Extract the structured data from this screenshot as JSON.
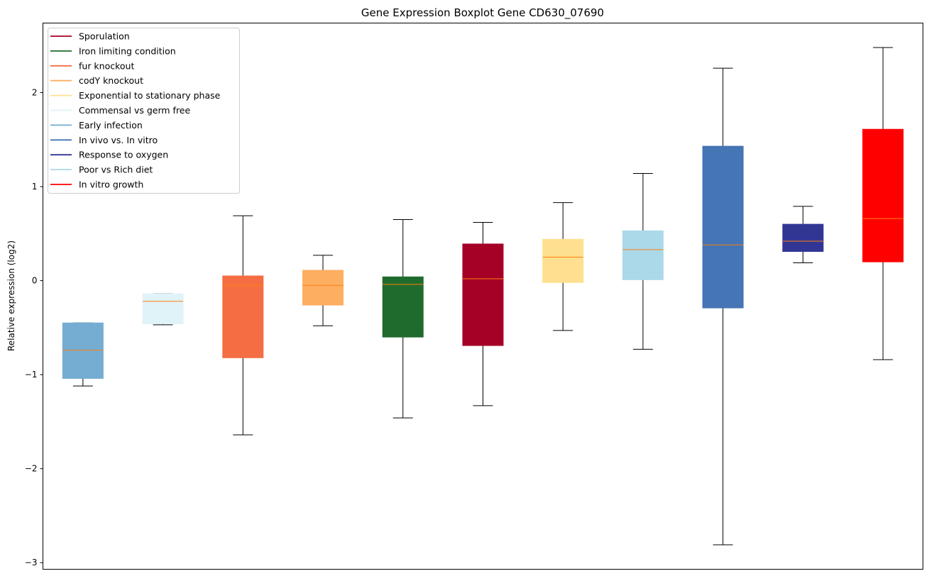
{
  "chart_data": {
    "type": "boxplot",
    "title": "Gene Expression Boxplot Gene CD630_07690",
    "xlabel": "",
    "ylabel": "Relative expression (log2)",
    "ylim": [
      -3.07,
      2.74
    ],
    "yticks": [
      -3,
      -2,
      -1,
      0,
      1,
      2
    ],
    "ytick_labels": [
      "−3",
      "−2",
      "−1",
      "0",
      "1",
      "2"
    ],
    "grid": false,
    "legend_position": "top-left",
    "median_color": "#ff7f0e",
    "legend": [
      {
        "label": "Sporulation",
        "color": "#a50026"
      },
      {
        "label": "Iron limiting condition",
        "color": "#1f6b2d"
      },
      {
        "label": "fur knockout",
        "color": "#f46d43"
      },
      {
        "label": "codY knockout",
        "color": "#fdae61"
      },
      {
        "label": "Exponential to stationary phase",
        "color": "#fee090"
      },
      {
        "label": "Commensal vs germ free",
        "color": "#e0f3f8"
      },
      {
        "label": "Early infection",
        "color": "#74add1"
      },
      {
        "label": "In vivo vs. In vitro",
        "color": "#4575b4"
      },
      {
        "label": "Response to oxygen",
        "color": "#313695"
      },
      {
        "label": "Poor vs Rich diet",
        "color": "#abd9e9"
      },
      {
        "label": "In vitro growth",
        "color": "#ff0000"
      }
    ],
    "boxes": [
      {
        "group": "Early infection",
        "color": "#74add1",
        "whisker_low": -1.12,
        "q1": -1.04,
        "median": -0.74,
        "q3": -0.45,
        "whisker_high": -0.45
      },
      {
        "group": "Commensal vs germ free",
        "color": "#e0f3f8",
        "whisker_low": -0.47,
        "q1": -0.46,
        "median": -0.22,
        "q3": -0.14,
        "whisker_high": -0.14
      },
      {
        "group": "fur knockout",
        "color": "#f46d43",
        "whisker_low": -1.64,
        "q1": -0.82,
        "median": -0.05,
        "q3": 0.05,
        "whisker_high": 0.69
      },
      {
        "group": "codY knockout",
        "color": "#fdae61",
        "whisker_low": -0.48,
        "q1": -0.26,
        "median": -0.05,
        "q3": 0.11,
        "whisker_high": 0.27
      },
      {
        "group": "Iron limiting condition",
        "color": "#1f6b2d",
        "whisker_low": -1.46,
        "q1": -0.6,
        "median": -0.04,
        "q3": 0.04,
        "whisker_high": 0.65
      },
      {
        "group": "Sporulation",
        "color": "#a50026",
        "whisker_low": -1.33,
        "q1": -0.69,
        "median": 0.02,
        "q3": 0.39,
        "whisker_high": 0.62
      },
      {
        "group": "Exponential to stationary phase",
        "color": "#fee090",
        "whisker_low": -0.53,
        "q1": -0.02,
        "median": 0.25,
        "q3": 0.44,
        "whisker_high": 0.83
      },
      {
        "group": "Poor vs Rich diet",
        "color": "#abd9e9",
        "whisker_low": -0.73,
        "q1": 0.01,
        "median": 0.33,
        "q3": 0.53,
        "whisker_high": 1.14
      },
      {
        "group": "In vivo vs. In vitro",
        "color": "#4575b4",
        "whisker_low": -2.81,
        "q1": -0.29,
        "median": 0.38,
        "q3": 1.43,
        "whisker_high": 2.26
      },
      {
        "group": "Response to oxygen",
        "color": "#313695",
        "whisker_low": 0.19,
        "q1": 0.31,
        "median": 0.42,
        "q3": 0.6,
        "whisker_high": 0.79
      },
      {
        "group": "In vitro growth",
        "color": "#ff0000",
        "whisker_low": -0.84,
        "q1": 0.2,
        "median": 0.66,
        "q3": 1.61,
        "whisker_high": 2.48
      }
    ]
  }
}
